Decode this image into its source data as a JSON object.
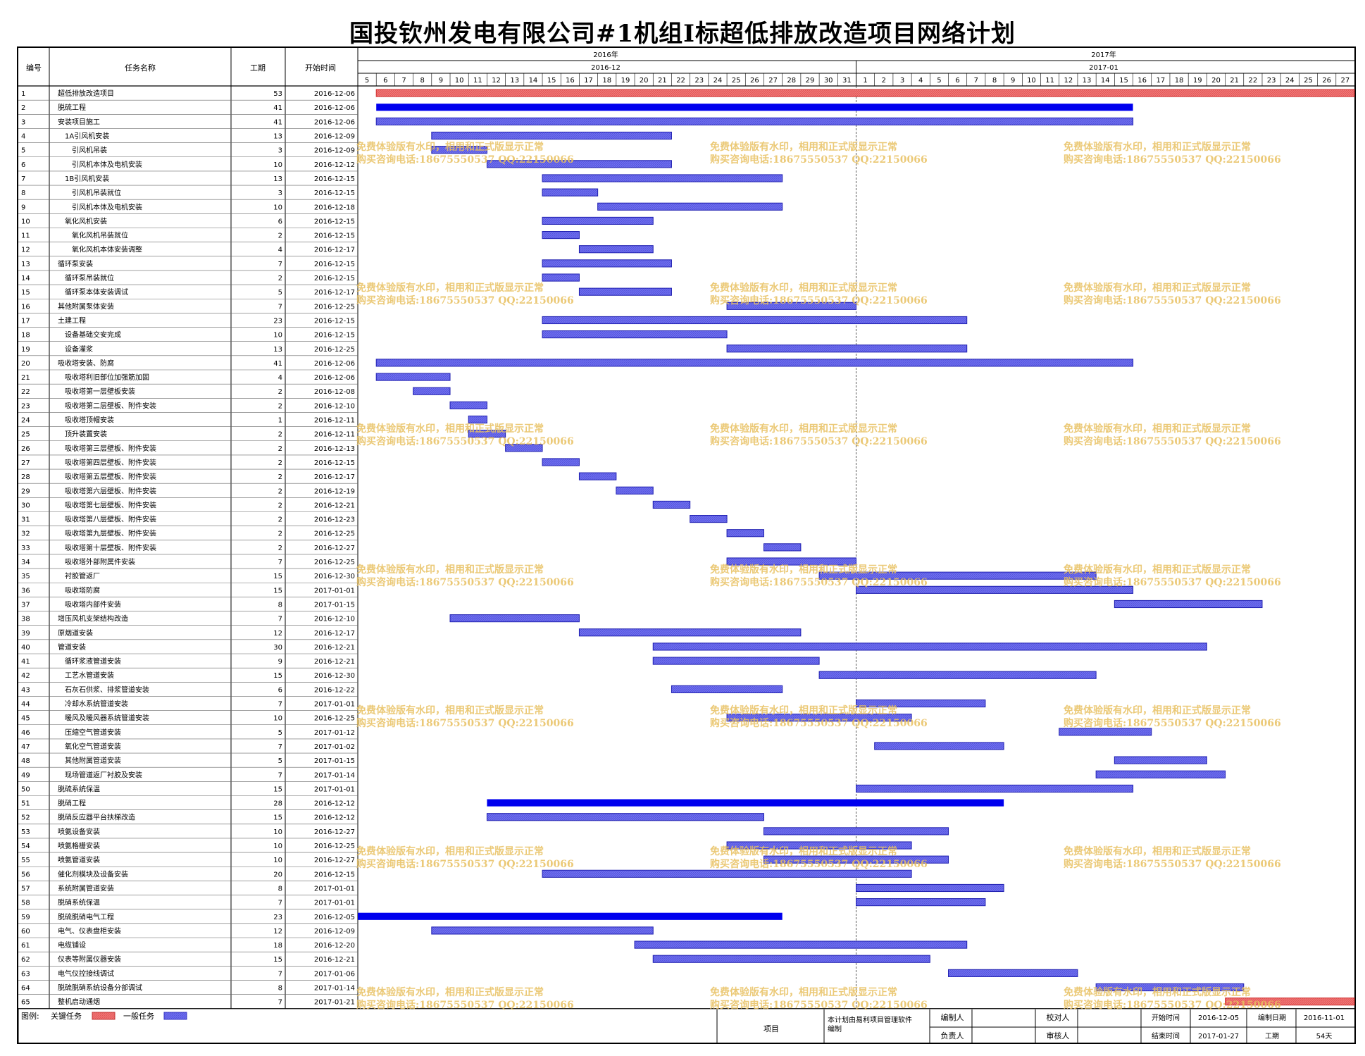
{
  "title": "国投钦州发电有限公司#1机组I标超低排放改造项目网络计划",
  "columns": {
    "id": "编号",
    "name": "任务名称",
    "duration": "工期",
    "start": "开始时间"
  },
  "timeline": {
    "years": [
      {
        "label": "2016年",
        "month": "2016-12"
      },
      {
        "label": "2017年",
        "month": "2017-01"
      }
    ],
    "days": [
      "5",
      "6",
      "7",
      "8",
      "9",
      "10",
      "11",
      "12",
      "13",
      "14",
      "15",
      "16",
      "17",
      "18",
      "19",
      "20",
      "21",
      "22",
      "23",
      "24",
      "25",
      "26",
      "27",
      "28",
      "29",
      "30",
      "31",
      "1",
      "2",
      "3",
      "4",
      "5",
      "6",
      "7",
      "8",
      "9",
      "10",
      "11",
      "12",
      "13",
      "14",
      "15",
      "16",
      "17",
      "18",
      "19",
      "20",
      "21",
      "22",
      "23",
      "24",
      "25",
      "26",
      "27"
    ],
    "start_date": "2016-12-05",
    "end_date": "2017-01-27"
  },
  "colors": {
    "critical": "#f06a6a",
    "normal": "#7070f0",
    "summary": "#0000ee",
    "today_line": "#333333",
    "watermark": "#e8c060"
  },
  "watermark": {
    "line1": "免费体验版有水印，相用和正式版显示正常",
    "line2": "购买咨询电话:18675550537 QQ:22150066"
  },
  "legend": {
    "label": "图例:",
    "critical": "关键任务",
    "normal": "一般任务"
  },
  "footer": {
    "project_label": "项目",
    "software_note": "本计划由易利项目管理软件编制",
    "editor_label": "编制人",
    "checker_label": "校对人",
    "owner_label": "负责人",
    "reviewer_label": "审核人",
    "start_label": "开始时间",
    "start_value": "2016-12-05",
    "end_label": "结束时间",
    "end_value": "2017-01-27",
    "compile_label": "编制日期",
    "compile_value": "2016-11-01",
    "period_label": "工期",
    "period_value": "54天"
  },
  "chart_data": {
    "type": "gantt",
    "title": "国投钦州发电有限公司#1机组I标超低排放改造项目网络计划",
    "x_range": [
      "2016-12-05",
      "2017-01-27"
    ],
    "tasks": [
      {
        "id": "1",
        "name": "超低排放改造项目",
        "duration": "53",
        "start": "2016-12-06",
        "level": 0,
        "type": "critical"
      },
      {
        "id": "2",
        "name": "脱硫工程",
        "duration": "41",
        "start": "2016-12-06",
        "level": 0,
        "type": "summary"
      },
      {
        "id": "3",
        "name": "安装项目施工",
        "duration": "41",
        "start": "2016-12-06",
        "level": 0,
        "type": "normal"
      },
      {
        "id": "4",
        "name": "1A引风机安装",
        "duration": "13",
        "start": "2016-12-09",
        "level": 1,
        "type": "normal"
      },
      {
        "id": "5",
        "name": "引风机吊装",
        "duration": "3",
        "start": "2016-12-09",
        "level": 2,
        "type": "normal"
      },
      {
        "id": "6",
        "name": "引风机本体及电机安装",
        "duration": "10",
        "start": "2016-12-12",
        "level": 2,
        "type": "normal"
      },
      {
        "id": "7",
        "name": "1B引风机安装",
        "duration": "13",
        "start": "2016-12-15",
        "level": 1,
        "type": "normal"
      },
      {
        "id": "8",
        "name": "引风机吊装就位",
        "duration": "3",
        "start": "2016-12-15",
        "level": 2,
        "type": "normal"
      },
      {
        "id": "9",
        "name": "引风机本体及电机安装",
        "duration": "10",
        "start": "2016-12-18",
        "level": 2,
        "type": "normal"
      },
      {
        "id": "10",
        "name": "氧化风机安装",
        "duration": "6",
        "start": "2016-12-15",
        "level": 1,
        "type": "normal"
      },
      {
        "id": "11",
        "name": "氧化风机吊装就位",
        "duration": "2",
        "start": "2016-12-15",
        "level": 2,
        "type": "normal"
      },
      {
        "id": "12",
        "name": "氧化风机本体安装调整",
        "duration": "4",
        "start": "2016-12-17",
        "level": 2,
        "type": "normal"
      },
      {
        "id": "13",
        "name": "循环泵安装",
        "duration": "7",
        "start": "2016-12-15",
        "level": 0,
        "type": "normal"
      },
      {
        "id": "14",
        "name": "循环泵吊装就位",
        "duration": "2",
        "start": "2016-12-15",
        "level": 1,
        "type": "normal"
      },
      {
        "id": "15",
        "name": "循环泵本体安装调试",
        "duration": "5",
        "start": "2016-12-17",
        "level": 1,
        "type": "normal"
      },
      {
        "id": "16",
        "name": "其他附属泵体安装",
        "duration": "7",
        "start": "2016-12-25",
        "level": 0,
        "type": "normal"
      },
      {
        "id": "17",
        "name": "土建工程",
        "duration": "23",
        "start": "2016-12-15",
        "level": 0,
        "type": "normal"
      },
      {
        "id": "18",
        "name": "设备基础交安完成",
        "duration": "10",
        "start": "2016-12-15",
        "level": 1,
        "type": "normal"
      },
      {
        "id": "19",
        "name": "设备灌浆",
        "duration": "13",
        "start": "2016-12-25",
        "level": 1,
        "type": "normal"
      },
      {
        "id": "20",
        "name": "吸收塔安装、防腐",
        "duration": "41",
        "start": "2016-12-06",
        "level": 0,
        "type": "normal"
      },
      {
        "id": "21",
        "name": "吸收塔利旧部位加强筋加固",
        "duration": "4",
        "start": "2016-12-06",
        "level": 1,
        "type": "normal"
      },
      {
        "id": "22",
        "name": "吸收塔第一层壁板安装",
        "duration": "2",
        "start": "2016-12-08",
        "level": 1,
        "type": "normal"
      },
      {
        "id": "23",
        "name": "吸收塔第二层壁板、附件安装",
        "duration": "2",
        "start": "2016-12-10",
        "level": 1,
        "type": "normal"
      },
      {
        "id": "24",
        "name": "吸收塔顶帽安装",
        "duration": "1",
        "start": "2016-12-11",
        "level": 1,
        "type": "normal"
      },
      {
        "id": "25",
        "name": "顶升装置安装",
        "duration": "2",
        "start": "2016-12-11",
        "level": 1,
        "type": "normal"
      },
      {
        "id": "26",
        "name": "吸收塔第三层壁板、附件安装",
        "duration": "2",
        "start": "2016-12-13",
        "level": 1,
        "type": "normal"
      },
      {
        "id": "27",
        "name": "吸收塔第四层壁板、附件安装",
        "duration": "2",
        "start": "2016-12-15",
        "level": 1,
        "type": "normal"
      },
      {
        "id": "28",
        "name": "吸收塔第五层壁板、附件安装",
        "duration": "2",
        "start": "2016-12-17",
        "level": 1,
        "type": "normal"
      },
      {
        "id": "29",
        "name": "吸收塔第六层壁板、附件安装",
        "duration": "2",
        "start": "2016-12-19",
        "level": 1,
        "type": "normal"
      },
      {
        "id": "30",
        "name": "吸收塔第七层壁板、附件安装",
        "duration": "2",
        "start": "2016-12-21",
        "level": 1,
        "type": "normal"
      },
      {
        "id": "31",
        "name": "吸收塔第八层壁板、附件安装",
        "duration": "2",
        "start": "2016-12-23",
        "level": 1,
        "type": "normal"
      },
      {
        "id": "32",
        "name": "吸收塔第九层壁板、附件安装",
        "duration": "2",
        "start": "2016-12-25",
        "level": 1,
        "type": "normal"
      },
      {
        "id": "33",
        "name": "吸收塔第十层壁板、附件安装",
        "duration": "2",
        "start": "2016-12-27",
        "level": 1,
        "type": "normal"
      },
      {
        "id": "34",
        "name": "吸收塔外部附属件安装",
        "duration": "7",
        "start": "2016-12-25",
        "level": 1,
        "type": "normal"
      },
      {
        "id": "35",
        "name": "衬胶管返厂",
        "duration": "15",
        "start": "2016-12-30",
        "level": 1,
        "type": "normal"
      },
      {
        "id": "36",
        "name": "吸收塔防腐",
        "duration": "15",
        "start": "2017-01-01",
        "level": 1,
        "type": "normal"
      },
      {
        "id": "37",
        "name": "吸收塔内部件安装",
        "duration": "8",
        "start": "2017-01-15",
        "level": 1,
        "type": "normal"
      },
      {
        "id": "38",
        "name": "增压风机支架结构改造",
        "duration": "7",
        "start": "2016-12-10",
        "level": 0,
        "type": "normal"
      },
      {
        "id": "39",
        "name": "原烟道安装",
        "duration": "12",
        "start": "2016-12-17",
        "level": 0,
        "type": "normal"
      },
      {
        "id": "40",
        "name": "管道安装",
        "duration": "30",
        "start": "2016-12-21",
        "level": 0,
        "type": "normal"
      },
      {
        "id": "41",
        "name": "循环浆液管道安装",
        "duration": "9",
        "start": "2016-12-21",
        "level": 1,
        "type": "normal"
      },
      {
        "id": "42",
        "name": "工艺水管道安装",
        "duration": "15",
        "start": "2016-12-30",
        "level": 1,
        "type": "normal"
      },
      {
        "id": "43",
        "name": "石灰石供浆、排浆管道安装",
        "duration": "6",
        "start": "2016-12-22",
        "level": 1,
        "type": "normal"
      },
      {
        "id": "44",
        "name": "冷却水系统管道安装",
        "duration": "7",
        "start": "2017-01-01",
        "level": 1,
        "type": "normal"
      },
      {
        "id": "45",
        "name": "暖风及暖风器系统管道安装",
        "duration": "10",
        "start": "2016-12-25",
        "level": 1,
        "type": "normal"
      },
      {
        "id": "46",
        "name": "压缩空气管道安装",
        "duration": "5",
        "start": "2017-01-12",
        "level": 1,
        "type": "normal"
      },
      {
        "id": "47",
        "name": "氧化空气管道安装",
        "duration": "7",
        "start": "2017-01-02",
        "level": 1,
        "type": "normal"
      },
      {
        "id": "48",
        "name": "其他附属管道安装",
        "duration": "5",
        "start": "2017-01-15",
        "level": 1,
        "type": "normal"
      },
      {
        "id": "49",
        "name": "现场管道返厂衬胶及安装",
        "duration": "7",
        "start": "2017-01-14",
        "level": 1,
        "type": "normal"
      },
      {
        "id": "50",
        "name": "脱硫系统保温",
        "duration": "15",
        "start": "2017-01-01",
        "level": 0,
        "type": "normal"
      },
      {
        "id": "51",
        "name": "脱硝工程",
        "duration": "28",
        "start": "2016-12-12",
        "level": 0,
        "type": "summary"
      },
      {
        "id": "52",
        "name": "脱硝反应器平台扶梯改造",
        "duration": "15",
        "start": "2016-12-12",
        "level": 0,
        "type": "normal"
      },
      {
        "id": "53",
        "name": "喷氨设备安装",
        "duration": "10",
        "start": "2016-12-27",
        "level": 0,
        "type": "normal"
      },
      {
        "id": "54",
        "name": "喷氨格栅安装",
        "duration": "10",
        "start": "2016-12-25",
        "level": 0,
        "type": "normal"
      },
      {
        "id": "55",
        "name": "喷氨管道安装",
        "duration": "10",
        "start": "2016-12-27",
        "level": 0,
        "type": "normal"
      },
      {
        "id": "56",
        "name": "催化剂模块及设备安装",
        "duration": "20",
        "start": "2016-12-15",
        "level": 0,
        "type": "normal"
      },
      {
        "id": "57",
        "name": "系统附属管道安装",
        "duration": "8",
        "start": "2017-01-01",
        "level": 0,
        "type": "normal"
      },
      {
        "id": "58",
        "name": "脱硝系统保温",
        "duration": "7",
        "start": "2017-01-01",
        "level": 0,
        "type": "normal"
      },
      {
        "id": "59",
        "name": "脱硫脱硝电气工程",
        "duration": "23",
        "start": "2016-12-05",
        "level": 0,
        "type": "summary"
      },
      {
        "id": "60",
        "name": "电气、仪表盘柜安装",
        "duration": "12",
        "start": "2016-12-09",
        "level": 0,
        "type": "normal"
      },
      {
        "id": "61",
        "name": "电缆铺设",
        "duration": "18",
        "start": "2016-12-20",
        "level": 0,
        "type": "normal"
      },
      {
        "id": "62",
        "name": "仪表等附属仪器安装",
        "duration": "15",
        "start": "2016-12-21",
        "level": 0,
        "type": "normal"
      },
      {
        "id": "63",
        "name": "电气仪控接线调试",
        "duration": "7",
        "start": "2017-01-06",
        "level": 0,
        "type": "normal"
      },
      {
        "id": "64",
        "name": "脱硫脱硝系统设备分部调试",
        "duration": "8",
        "start": "2017-01-14",
        "level": 0,
        "type": "normal"
      },
      {
        "id": "65",
        "name": "整机启动通烟",
        "duration": "7",
        "start": "2017-01-21",
        "level": 0,
        "type": "critical"
      }
    ]
  }
}
